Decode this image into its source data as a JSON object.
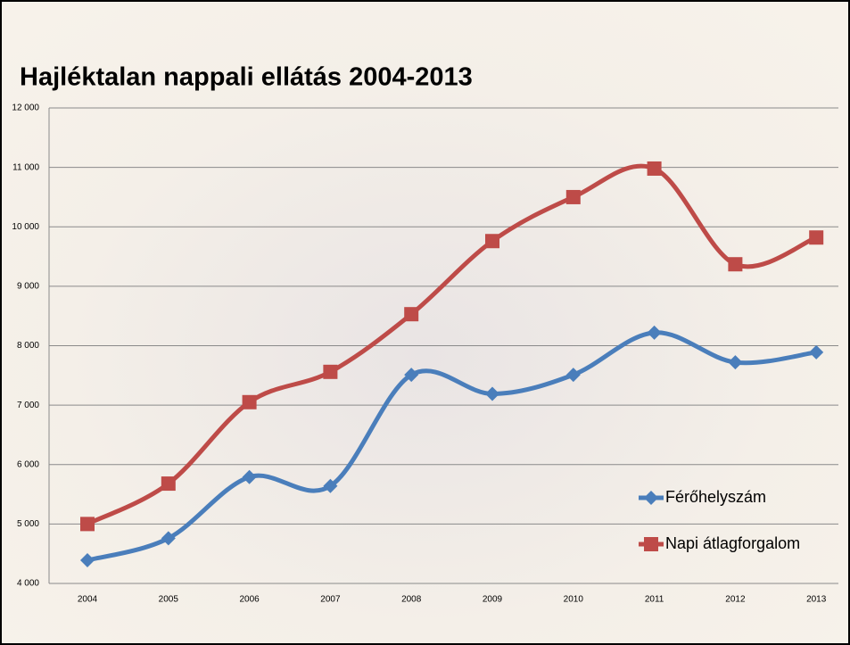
{
  "chart_data": {
    "type": "line",
    "title": "Hajléktalan nappali ellátás 2004-2013",
    "categories": [
      "2004",
      "2005",
      "2006",
      "2007",
      "2008",
      "2009",
      "2010",
      "2011",
      "2012",
      "2013"
    ],
    "series": [
      {
        "name": "Férőhelyszám",
        "color": "#4a7ebb",
        "marker": "diamond",
        "values": [
          4390,
          4760,
          5790,
          5640,
          7510,
          7190,
          7510,
          8220,
          7720,
          7890
        ]
      },
      {
        "name": "Napi átlagforgalom",
        "color": "#be4b48",
        "marker": "square",
        "values": [
          5000,
          5680,
          7050,
          7560,
          8530,
          9760,
          10500,
          10980,
          9370,
          9820
        ]
      }
    ],
    "ylim": [
      4000,
      12000
    ],
    "yticks": [
      {
        "value": 4000,
        "label": "4 000"
      },
      {
        "value": 5000,
        "label": "5 000"
      },
      {
        "value": 6000,
        "label": "6 000"
      },
      {
        "value": 7000,
        "label": "7 000"
      },
      {
        "value": 8000,
        "label": "8 000"
      },
      {
        "value": 9000,
        "label": "9 000"
      },
      {
        "value": 10000,
        "label": "10 000"
      },
      {
        "value": 11000,
        "label": "11 000"
      },
      {
        "value": 12000,
        "label": "12 000"
      }
    ],
    "grid": true,
    "smooth": true,
    "legend": "right"
  }
}
